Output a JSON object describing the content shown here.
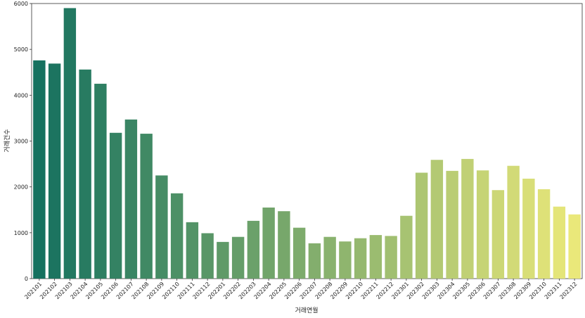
{
  "chart_data": {
    "type": "bar",
    "xlabel": "거래연월",
    "ylabel": "거래건수",
    "ylim": [
      0,
      6000
    ],
    "yticks": [
      0,
      1000,
      2000,
      3000,
      4000,
      5000,
      6000
    ],
    "grid": false,
    "palette": "summer_r (dark green to yellow)",
    "categories": [
      "202101",
      "202102",
      "202103",
      "202104",
      "202105",
      "202106",
      "202107",
      "202108",
      "202109",
      "202110",
      "202111",
      "202112",
      "202201",
      "202202",
      "202203",
      "202204",
      "202205",
      "202206",
      "202207",
      "202208",
      "202209",
      "202210",
      "202211",
      "202212",
      "202301",
      "202302",
      "202303",
      "202304",
      "202305",
      "202306",
      "202307",
      "202308",
      "202309",
      "202310",
      "202311",
      "202312"
    ],
    "values": [
      4760,
      4690,
      5900,
      4560,
      4250,
      3180,
      3470,
      3160,
      2250,
      1860,
      1230,
      990,
      800,
      910,
      1260,
      1550,
      1470,
      1110,
      770,
      910,
      810,
      880,
      950,
      930,
      1370,
      2310,
      2590,
      2350,
      2610,
      2360,
      1930,
      2460,
      2180,
      1950,
      1570,
      1400
    ]
  }
}
